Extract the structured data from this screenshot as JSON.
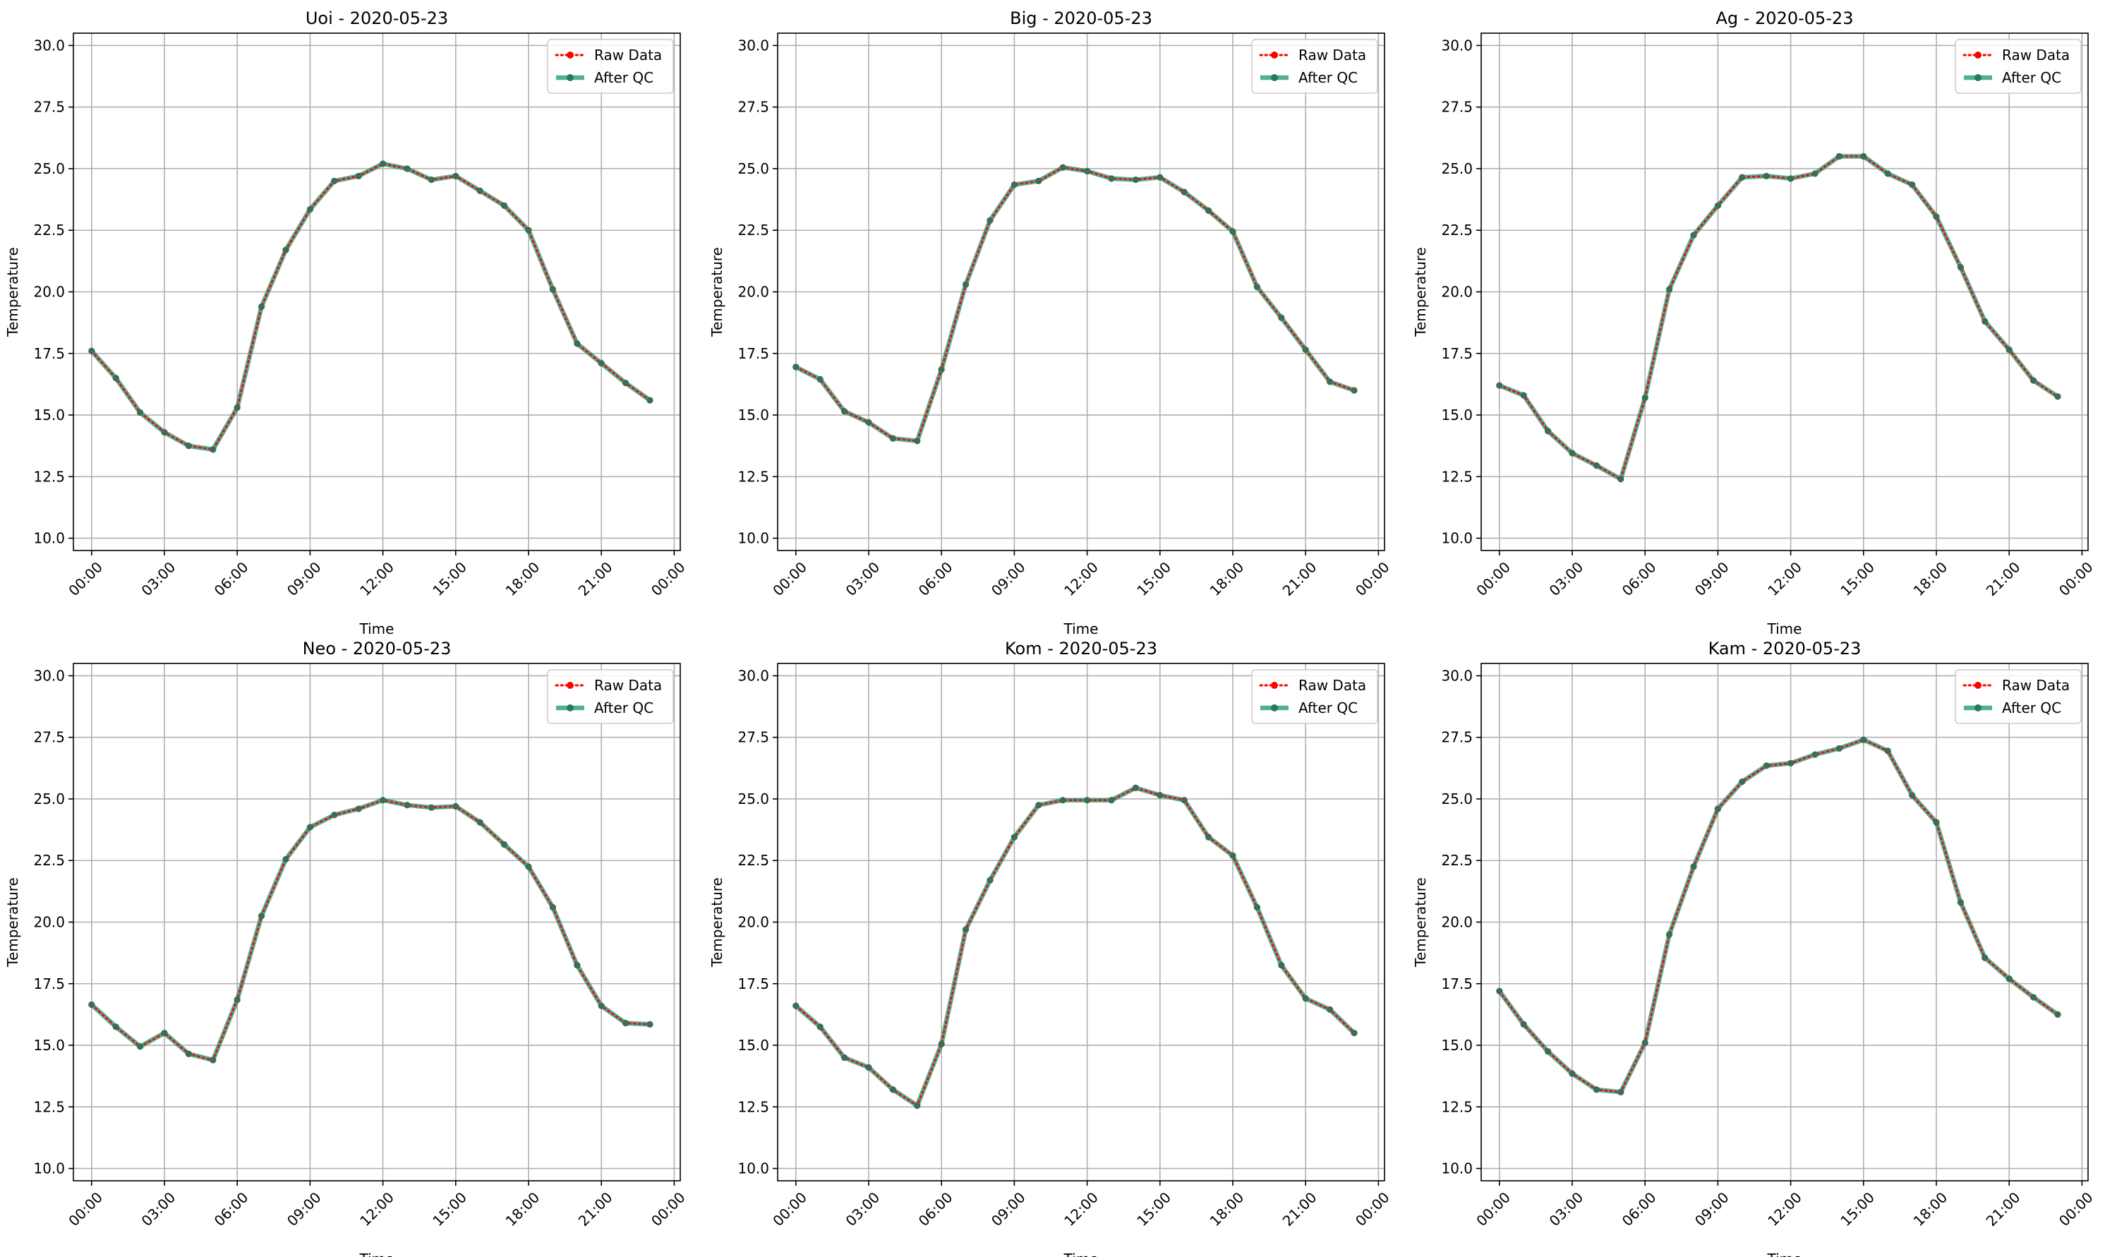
{
  "chart_data": [
    {
      "type": "line",
      "title": "Uoi - 2020-05-23",
      "xlabel": "Time",
      "ylabel": "Temperature",
      "ylim": [
        9.5,
        30.5
      ],
      "yticks": [
        "10.0",
        "12.5",
        "15.0",
        "17.5",
        "20.0",
        "22.5",
        "25.0",
        "27.5",
        "30.0"
      ],
      "xlim": [
        -0.75,
        24.25
      ],
      "xticks": [
        "00:00",
        "03:00",
        "06:00",
        "09:00",
        "12:00",
        "15:00",
        "18:00",
        "21:00",
        "00:00"
      ],
      "grid": true,
      "legend_position": "top-right",
      "x": [
        "00:00",
        "01:00",
        "02:00",
        "03:00",
        "04:00",
        "05:00",
        "06:00",
        "07:00",
        "08:00",
        "09:00",
        "10:00",
        "11:00",
        "12:00",
        "13:00",
        "14:00",
        "15:00",
        "16:00",
        "17:00",
        "18:00",
        "19:00",
        "20:00",
        "21:00",
        "22:00",
        "23:00"
      ],
      "series": [
        {
          "name": "Raw Data",
          "color": "#ff0000",
          "values": [
            17.6,
            16.5,
            15.1,
            14.3,
            13.75,
            13.6,
            15.3,
            19.4,
            21.7,
            23.35,
            24.5,
            24.7,
            25.2,
            25.0,
            24.55,
            24.7,
            24.1,
            23.5,
            22.5,
            20.1,
            17.9,
            17.1,
            16.3,
            15.6
          ]
        },
        {
          "name": "After QC",
          "color": "#2a9d7c",
          "values": [
            17.6,
            16.5,
            15.1,
            14.3,
            13.75,
            13.6,
            15.3,
            19.4,
            21.7,
            23.35,
            24.5,
            24.7,
            25.2,
            25.0,
            24.55,
            24.7,
            24.1,
            23.5,
            22.5,
            20.1,
            17.9,
            17.1,
            16.3,
            15.6
          ]
        }
      ]
    },
    {
      "type": "line",
      "title": "Big - 2020-05-23",
      "xlabel": "Time",
      "ylabel": "Temperature",
      "ylim": [
        9.5,
        30.5
      ],
      "yticks": [
        "10.0",
        "12.5",
        "15.0",
        "17.5",
        "20.0",
        "22.5",
        "25.0",
        "27.5",
        "30.0"
      ],
      "xlim": [
        -0.75,
        24.25
      ],
      "xticks": [
        "00:00",
        "03:00",
        "06:00",
        "09:00",
        "12:00",
        "15:00",
        "18:00",
        "21:00",
        "00:00"
      ],
      "grid": true,
      "legend_position": "top-right",
      "x": [
        "00:00",
        "01:00",
        "02:00",
        "03:00",
        "04:00",
        "05:00",
        "06:00",
        "07:00",
        "08:00",
        "09:00",
        "10:00",
        "11:00",
        "12:00",
        "13:00",
        "14:00",
        "15:00",
        "16:00",
        "17:00",
        "18:00",
        "19:00",
        "20:00",
        "21:00",
        "22:00",
        "23:00"
      ],
      "series": [
        {
          "name": "Raw Data",
          "color": "#ff0000",
          "values": [
            16.95,
            16.45,
            15.15,
            14.7,
            14.05,
            13.95,
            16.85,
            20.3,
            22.9,
            24.35,
            24.5,
            25.05,
            24.9,
            24.6,
            24.55,
            24.65,
            24.05,
            23.3,
            22.45,
            20.2,
            18.95,
            17.65,
            16.35,
            16.0
          ]
        },
        {
          "name": "After QC",
          "color": "#2a9d7c",
          "values": [
            16.95,
            16.45,
            15.15,
            14.7,
            14.05,
            13.95,
            16.85,
            20.3,
            22.9,
            24.35,
            24.5,
            25.05,
            24.9,
            24.6,
            24.55,
            24.65,
            24.05,
            23.3,
            22.45,
            20.2,
            18.95,
            17.65,
            16.35,
            16.0
          ]
        }
      ]
    },
    {
      "type": "line",
      "title": "Ag - 2020-05-23",
      "xlabel": "Time",
      "ylabel": "Temperature",
      "ylim": [
        9.5,
        30.5
      ],
      "yticks": [
        "10.0",
        "12.5",
        "15.0",
        "17.5",
        "20.0",
        "22.5",
        "25.0",
        "27.5",
        "30.0"
      ],
      "xlim": [
        -0.75,
        24.25
      ],
      "xticks": [
        "00:00",
        "03:00",
        "06:00",
        "09:00",
        "12:00",
        "15:00",
        "18:00",
        "21:00",
        "00:00"
      ],
      "grid": true,
      "legend_position": "top-right",
      "x": [
        "00:00",
        "01:00",
        "02:00",
        "03:00",
        "04:00",
        "05:00",
        "06:00",
        "07:00",
        "08:00",
        "09:00",
        "10:00",
        "11:00",
        "12:00",
        "13:00",
        "14:00",
        "15:00",
        "16:00",
        "17:00",
        "18:00",
        "19:00",
        "20:00",
        "21:00",
        "22:00",
        "23:00"
      ],
      "series": [
        {
          "name": "Raw Data",
          "color": "#ff0000",
          "values": [
            16.2,
            15.8,
            14.35,
            13.45,
            12.95,
            12.4,
            15.7,
            20.1,
            22.3,
            23.5,
            24.65,
            24.7,
            24.6,
            24.8,
            25.5,
            25.5,
            24.8,
            24.35,
            23.05,
            21.0,
            18.8,
            17.65,
            16.4,
            15.75
          ]
        },
        {
          "name": "After QC",
          "color": "#2a9d7c",
          "values": [
            16.2,
            15.8,
            14.35,
            13.45,
            12.95,
            12.4,
            15.7,
            20.1,
            22.3,
            23.5,
            24.65,
            24.7,
            24.6,
            24.8,
            25.5,
            25.5,
            24.8,
            24.35,
            23.05,
            21.0,
            18.8,
            17.65,
            16.4,
            15.75
          ]
        }
      ]
    },
    {
      "type": "line",
      "title": "Neo - 2020-05-23",
      "xlabel": "Time",
      "ylabel": "Temperature",
      "ylim": [
        9.5,
        30.5
      ],
      "yticks": [
        "10.0",
        "12.5",
        "15.0",
        "17.5",
        "20.0",
        "22.5",
        "25.0",
        "27.5",
        "30.0"
      ],
      "xlim": [
        -0.75,
        24.25
      ],
      "xticks": [
        "00:00",
        "03:00",
        "06:00",
        "09:00",
        "12:00",
        "15:00",
        "18:00",
        "21:00",
        "00:00"
      ],
      "grid": true,
      "legend_position": "top-right",
      "x": [
        "00:00",
        "01:00",
        "02:00",
        "03:00",
        "04:00",
        "05:00",
        "06:00",
        "07:00",
        "08:00",
        "09:00",
        "10:00",
        "11:00",
        "12:00",
        "13:00",
        "14:00",
        "15:00",
        "16:00",
        "17:00",
        "18:00",
        "19:00",
        "20:00",
        "21:00",
        "22:00",
        "23:00"
      ],
      "series": [
        {
          "name": "Raw Data",
          "color": "#ff0000",
          "values": [
            16.65,
            15.75,
            14.95,
            15.5,
            14.65,
            14.4,
            16.85,
            20.25,
            22.55,
            23.85,
            24.35,
            24.6,
            24.95,
            24.75,
            24.65,
            24.7,
            24.05,
            23.15,
            22.25,
            20.6,
            18.25,
            16.6,
            15.9,
            15.85
          ]
        },
        {
          "name": "After QC",
          "color": "#2a9d7c",
          "values": [
            16.65,
            15.75,
            14.95,
            15.5,
            14.65,
            14.4,
            16.85,
            20.25,
            22.55,
            23.85,
            24.35,
            24.6,
            24.95,
            24.75,
            24.65,
            24.7,
            24.05,
            23.15,
            22.25,
            20.6,
            18.25,
            16.6,
            15.9,
            15.85
          ]
        }
      ]
    },
    {
      "type": "line",
      "title": "Kom - 2020-05-23",
      "xlabel": "Time",
      "ylabel": "Temperature",
      "ylim": [
        9.5,
        30.5
      ],
      "yticks": [
        "10.0",
        "12.5",
        "15.0",
        "17.5",
        "20.0",
        "22.5",
        "25.0",
        "27.5",
        "30.0"
      ],
      "xlim": [
        -0.75,
        24.25
      ],
      "xticks": [
        "00:00",
        "03:00",
        "06:00",
        "09:00",
        "12:00",
        "15:00",
        "18:00",
        "21:00",
        "00:00"
      ],
      "grid": true,
      "legend_position": "top-right",
      "x": [
        "00:00",
        "01:00",
        "02:00",
        "03:00",
        "04:00",
        "05:00",
        "06:00",
        "07:00",
        "08:00",
        "09:00",
        "10:00",
        "11:00",
        "12:00",
        "13:00",
        "14:00",
        "15:00",
        "16:00",
        "17:00",
        "18:00",
        "19:00",
        "20:00",
        "21:00",
        "22:00",
        "23:00"
      ],
      "series": [
        {
          "name": "Raw Data",
          "color": "#ff0000",
          "values": [
            16.6,
            15.75,
            14.5,
            14.1,
            13.2,
            12.55,
            15.05,
            19.7,
            21.7,
            23.45,
            24.75,
            24.95,
            24.95,
            24.95,
            25.45,
            25.15,
            24.95,
            23.45,
            22.7,
            20.6,
            18.25,
            16.9,
            16.45,
            15.5
          ]
        },
        {
          "name": "After QC",
          "color": "#2a9d7c",
          "values": [
            16.6,
            15.75,
            14.5,
            14.1,
            13.2,
            12.55,
            15.05,
            19.7,
            21.7,
            23.45,
            24.75,
            24.95,
            24.95,
            24.95,
            25.45,
            25.15,
            24.95,
            23.45,
            22.7,
            20.6,
            18.25,
            16.9,
            16.45,
            15.5
          ]
        }
      ]
    },
    {
      "type": "line",
      "title": "Kam - 2020-05-23",
      "xlabel": "Time",
      "ylabel": "Temperature",
      "ylim": [
        9.5,
        30.5
      ],
      "yticks": [
        "10.0",
        "12.5",
        "15.0",
        "17.5",
        "20.0",
        "22.5",
        "25.0",
        "27.5",
        "30.0"
      ],
      "xlim": [
        -0.75,
        24.25
      ],
      "xticks": [
        "00:00",
        "03:00",
        "06:00",
        "09:00",
        "12:00",
        "15:00",
        "18:00",
        "21:00",
        "00:00"
      ],
      "grid": true,
      "legend_position": "top-right",
      "x": [
        "00:00",
        "01:00",
        "02:00",
        "03:00",
        "04:00",
        "05:00",
        "06:00",
        "07:00",
        "08:00",
        "09:00",
        "10:00",
        "11:00",
        "12:00",
        "13:00",
        "14:00",
        "15:00",
        "16:00",
        "17:00",
        "18:00",
        "19:00",
        "20:00",
        "21:00",
        "22:00",
        "23:00"
      ],
      "series": [
        {
          "name": "Raw Data",
          "color": "#ff0000",
          "values": [
            17.2,
            15.85,
            14.75,
            13.85,
            13.2,
            13.1,
            15.1,
            19.5,
            22.25,
            24.6,
            25.7,
            26.35,
            26.45,
            26.8,
            27.05,
            27.4,
            26.95,
            25.15,
            24.05,
            20.8,
            18.55,
            17.7,
            16.95,
            16.25
          ]
        },
        {
          "name": "After QC",
          "color": "#2a9d7c",
          "values": [
            17.2,
            15.85,
            14.75,
            13.85,
            13.2,
            13.1,
            15.1,
            19.5,
            22.25,
            24.6,
            25.7,
            26.35,
            26.45,
            26.8,
            27.05,
            27.4,
            26.95,
            25.15,
            24.05,
            20.8,
            18.55,
            17.7,
            16.95,
            16.25
          ]
        }
      ]
    }
  ]
}
